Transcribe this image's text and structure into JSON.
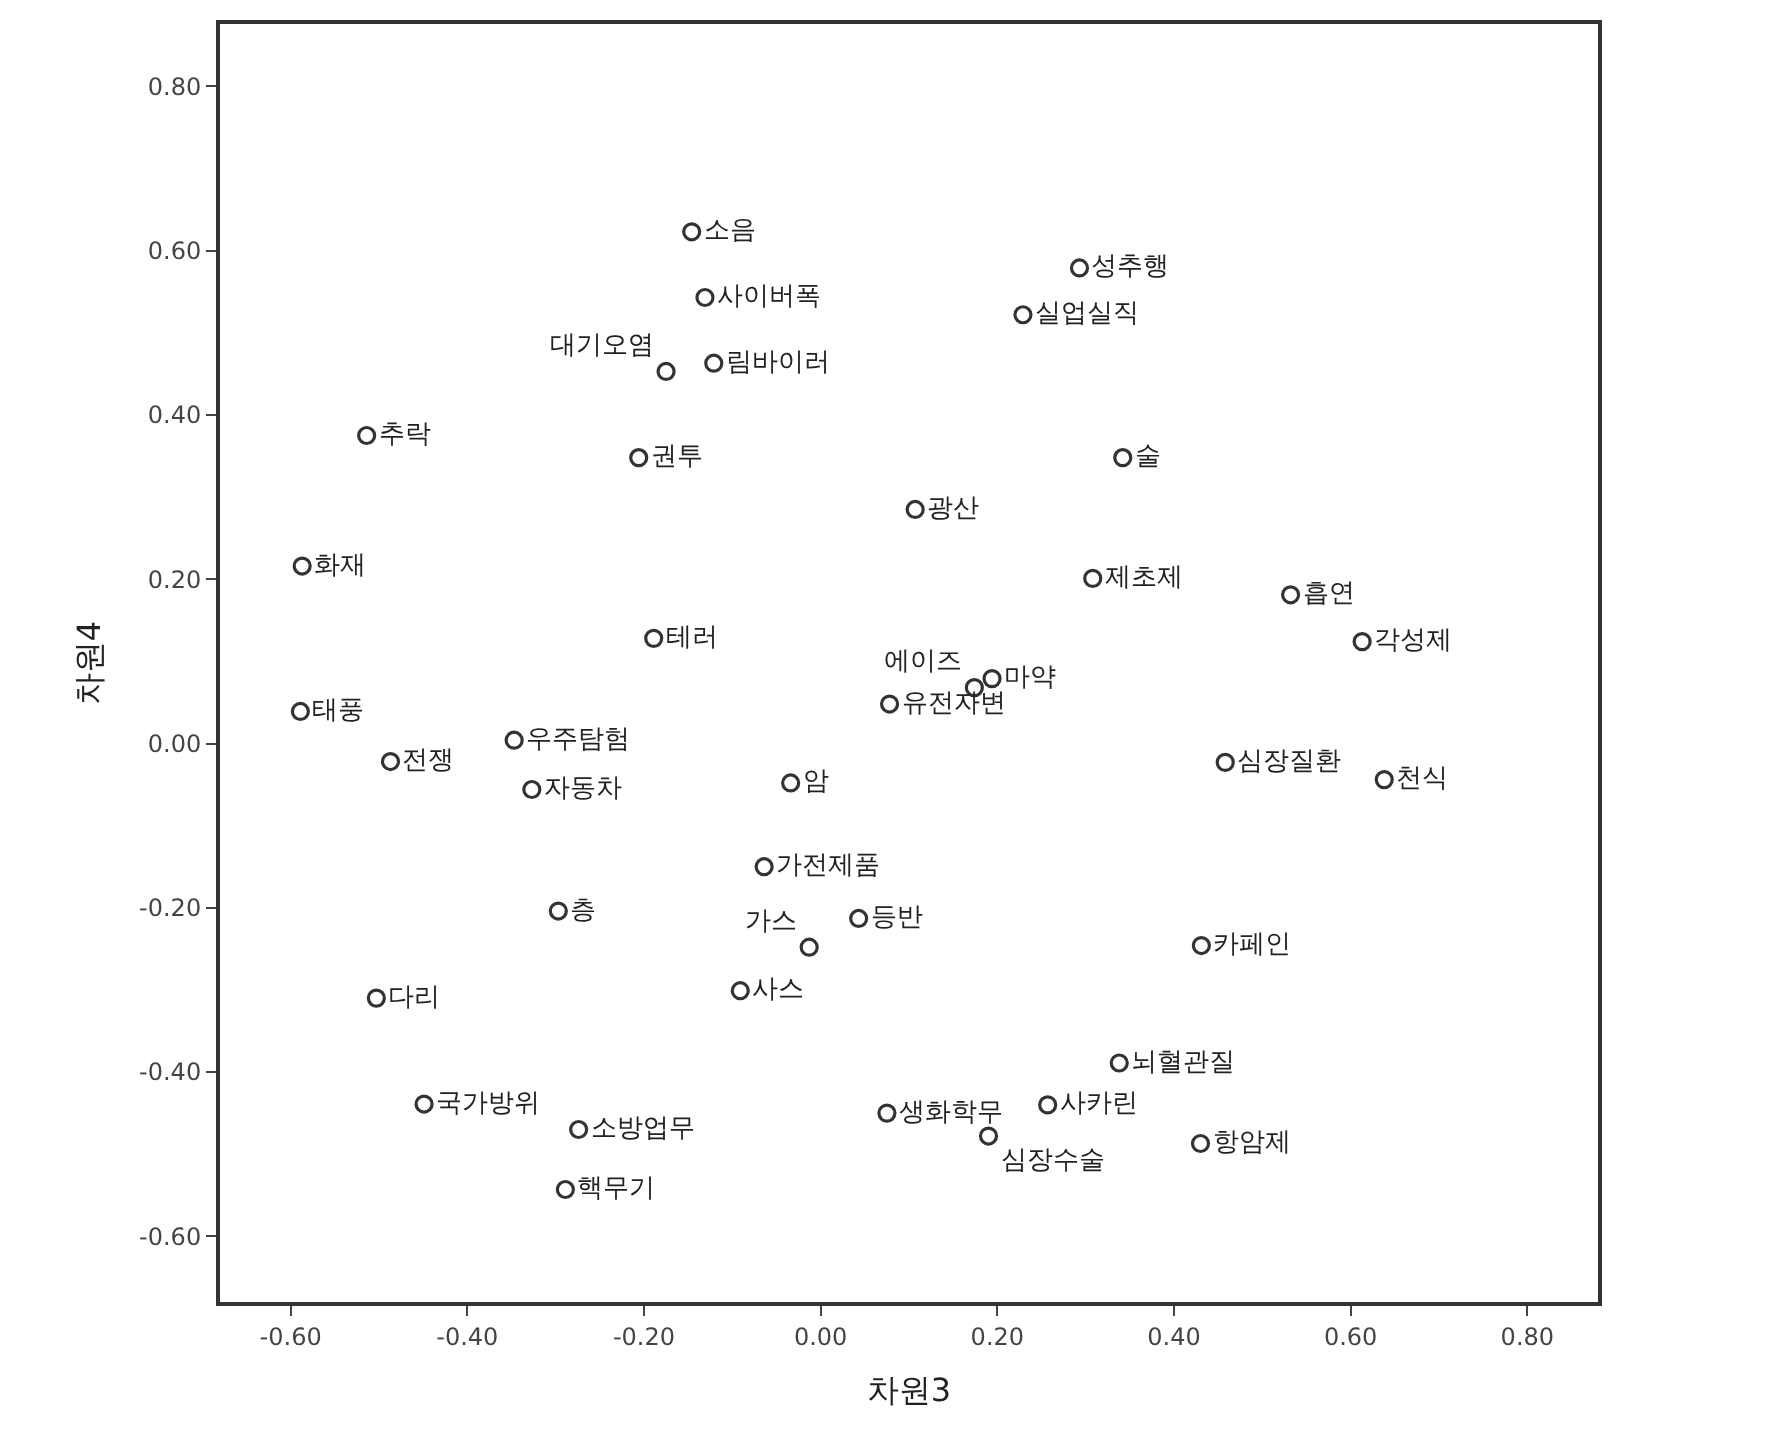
{
  "chart_data": {
    "type": "scatter",
    "xlabel": "차원3",
    "ylabel": "차원4",
    "marker": "circle",
    "color": "#333333",
    "xlim": [
      -0.68,
      0.88
    ],
    "ylim": [
      -0.68,
      0.876
    ],
    "xticks": [
      {
        "value": -0.6,
        "label": "-0.60"
      },
      {
        "value": -0.4,
        "label": "-0.40"
      },
      {
        "value": -0.2,
        "label": "-0.20"
      },
      {
        "value": 0,
        "label": "0.00"
      },
      {
        "value": 0.2,
        "label": "0.20"
      },
      {
        "value": 0.4,
        "label": "0.40"
      },
      {
        "value": 0.6,
        "label": "0.60"
      },
      {
        "value": 0.8,
        "label": "0.80"
      }
    ],
    "yticks": [
      {
        "value": -0.6,
        "label": "-0.60"
      },
      {
        "value": -0.4,
        "label": "-0.40"
      },
      {
        "value": -0.2,
        "label": "-0.20"
      },
      {
        "value": 0,
        "label": "0.00"
      },
      {
        "value": 0.2,
        "label": "0.20"
      },
      {
        "value": 0.4,
        "label": "0.40"
      },
      {
        "value": 0.6,
        "label": "0.60"
      },
      {
        "value": 0.8,
        "label": "0.80"
      }
    ],
    "x": [
      -0.146,
      -0.131,
      -0.175,
      -0.121,
      -0.514,
      -0.206,
      -0.587,
      -0.189,
      -0.589,
      -0.487,
      -0.347,
      -0.327,
      -0.034,
      -0.064,
      -0.297,
      -0.013,
      0.043,
      -0.091,
      -0.503,
      -0.449,
      -0.274,
      -0.289,
      0.075,
      0.19,
      0.257,
      0.338,
      0.43,
      0.431,
      0.458,
      0.638,
      0.078,
      0.174,
      0.194,
      0.107,
      0.342,
      0.293,
      0.229,
      0.308,
      0.532,
      0.613
    ],
    "values": [
      0.623,
      0.543,
      0.453,
      0.463,
      0.375,
      0.348,
      0.216,
      0.128,
      0.039,
      -0.022,
      0.004,
      -0.056,
      -0.048,
      -0.15,
      -0.204,
      -0.248,
      -0.213,
      -0.301,
      -0.31,
      -0.439,
      -0.47,
      -0.543,
      -0.45,
      -0.478,
      -0.44,
      -0.389,
      -0.487,
      -0.246,
      -0.023,
      -0.044,
      0.048,
      0.068,
      0.079,
      0.285,
      0.348,
      0.579,
      0.522,
      0.201,
      0.181,
      0.124
    ],
    "value_labels": [
      "소음",
      "사이버폭",
      "대기오염",
      "림바이러",
      "추락",
      "권투",
      "화재",
      "테러",
      "태풍",
      "전쟁",
      "우주탐험",
      "자동차",
      "암",
      "가전제품",
      "층",
      "가스",
      "등반",
      "사스",
      "다리",
      "국가방위",
      "소방업무",
      "핵무기",
      "생화학무",
      "심장수술",
      "사카린",
      "뇌혈관질",
      "항암제",
      "카페인",
      "심장질환",
      "천식",
      "유전자변",
      "에이즈",
      "마약",
      "광산",
      "술",
      "성추행",
      "실업실직",
      "제초제",
      "흡연",
      "각성제"
    ]
  }
}
